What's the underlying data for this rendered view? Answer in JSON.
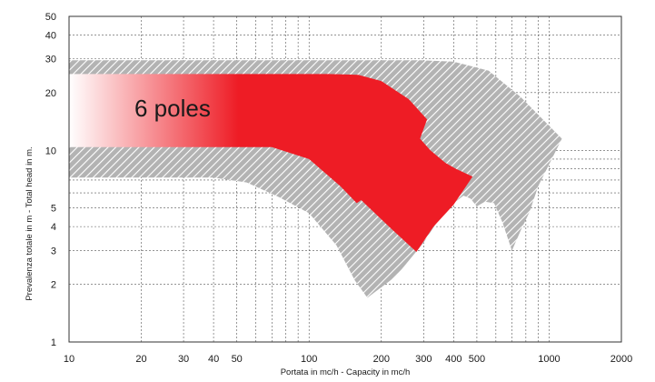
{
  "chart_data": {
    "type": "area",
    "title": "",
    "xlabel": "Portata in mc/h - Capacity in mc/h",
    "ylabel": "Prevalenza totale in m - Total head in m.",
    "x_scale": "log",
    "y_scale": "log",
    "xlim": [
      10,
      2000
    ],
    "ylim": [
      1,
      50
    ],
    "x_ticks": [
      10,
      20,
      30,
      40,
      50,
      100,
      200,
      300,
      400,
      500,
      1000,
      2000
    ],
    "y_ticks": [
      1,
      2,
      3,
      4,
      5,
      10,
      20,
      30,
      40,
      50
    ],
    "grid": true,
    "region_label": "6 poles",
    "colors": {
      "red": "#ee1c25",
      "hatch_bg": "#b3b3b3",
      "hatch_line": "#ffffff",
      "grid": "#555555"
    },
    "series": [
      {
        "type": "hatched-envelope",
        "points": [
          [
            10,
            29.5
          ],
          [
            120,
            29.5
          ],
          [
            200,
            29.5
          ],
          [
            290,
            29.5
          ],
          [
            400,
            29
          ],
          [
            560,
            26
          ],
          [
            760,
            19
          ],
          [
            1130,
            11.5
          ],
          [
            900,
            6.5
          ],
          [
            830,
            4.8
          ],
          [
            760,
            3.8
          ],
          [
            700,
            3.0
          ],
          [
            640,
            4.2
          ],
          [
            590,
            5.3
          ],
          [
            540,
            5.4
          ],
          [
            500,
            5.1
          ],
          [
            470,
            5.6
          ],
          [
            440,
            5.8
          ],
          [
            400,
            5.3
          ],
          [
            370,
            4.8
          ],
          [
            340,
            4.2
          ],
          [
            300,
            3.3
          ],
          [
            230,
            2.2
          ],
          [
            175,
            1.7
          ],
          [
            155,
            2.1
          ],
          [
            130,
            3.2
          ],
          [
            100,
            4.7
          ],
          [
            75,
            5.7
          ],
          [
            55,
            6.8
          ],
          [
            40,
            7.2
          ],
          [
            10,
            7.2
          ]
        ]
      },
      {
        "type": "colored-region",
        "name": "6 poles",
        "points": [
          [
            10,
            25
          ],
          [
            120,
            25
          ],
          [
            160,
            24.8
          ],
          [
            200,
            23
          ],
          [
            260,
            18.5
          ],
          [
            310,
            14.5
          ],
          [
            290,
            11.5
          ],
          [
            320,
            10
          ],
          [
            370,
            8.6
          ],
          [
            410,
            8.0
          ],
          [
            480,
            7.3
          ],
          [
            400,
            5.2
          ],
          [
            330,
            4.0
          ],
          [
            280,
            2.95
          ],
          [
            220,
            3.9
          ],
          [
            170,
            5.3
          ],
          [
            165,
            5.5
          ],
          [
            158,
            5.3
          ],
          [
            135,
            6.5
          ],
          [
            100,
            9.0
          ],
          [
            70,
            10.4
          ],
          [
            10,
            10.4
          ]
        ]
      }
    ]
  }
}
